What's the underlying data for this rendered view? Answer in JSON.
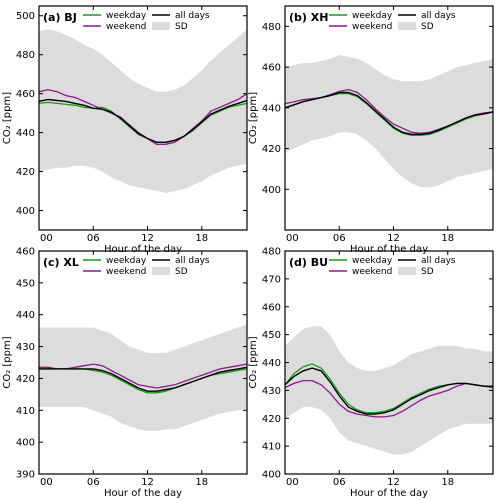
{
  "chart_data": [
    {
      "type": "line",
      "panel_label": "(a) BJ",
      "xlabel": "Hour of the day",
      "ylabel": "CO₂ [ppm]",
      "xlim": [
        0,
        23
      ],
      "ylim": [
        390,
        505
      ],
      "yticks": [
        400,
        420,
        440,
        460,
        480,
        500
      ],
      "xticks": [
        0,
        6,
        12,
        18
      ],
      "xtick_labels": [
        "00",
        "06",
        "12",
        "18"
      ],
      "x": [
        0,
        1,
        2,
        3,
        4,
        5,
        6,
        7,
        8,
        9,
        10,
        11,
        12,
        13,
        14,
        15,
        16,
        17,
        18,
        19,
        20,
        21,
        22,
        23
      ],
      "series": [
        {
          "name": "weekday",
          "color": "#1a9a1a",
          "values": [
            455,
            455.5,
            455,
            454.5,
            454,
            453,
            452.5,
            453,
            451,
            447,
            443,
            439,
            437,
            435,
            435,
            436,
            438,
            441,
            445,
            449,
            451,
            453,
            454,
            455
          ]
        },
        {
          "name": "weekend",
          "color": "#8b1a8b",
          "values": [
            461,
            462,
            461,
            459,
            458,
            456,
            454,
            452,
            450,
            448,
            444,
            440,
            437,
            434,
            434,
            435,
            438,
            442,
            446,
            451,
            453,
            455,
            457,
            460
          ]
        },
        {
          "name": "all days",
          "color": "#000000",
          "values": [
            456,
            457,
            456.5,
            456,
            455,
            454,
            452.5,
            452,
            450.5,
            447.5,
            443.5,
            439.5,
            437,
            435,
            435,
            436,
            438,
            441.5,
            445.5,
            449.5,
            451.5,
            453.5,
            455,
            456.5
          ]
        }
      ],
      "sd_upper": [
        492,
        493,
        492,
        490,
        488,
        485,
        483,
        480,
        476,
        472,
        468,
        465,
        463,
        461,
        461,
        462,
        464,
        468,
        472,
        477,
        481,
        485,
        489,
        493
      ],
      "sd_lower": [
        420,
        421,
        422,
        422,
        423,
        423,
        422,
        420,
        417,
        415,
        413,
        412,
        411,
        410,
        409,
        410,
        411,
        413,
        415,
        418,
        420,
        422,
        423,
        424
      ]
    },
    {
      "type": "line",
      "panel_label": "(b) XH",
      "xlabel": "Hour of the day",
      "ylabel": "CO₂ [ppm]",
      "xlim": [
        0,
        23
      ],
      "ylim": [
        380,
        490
      ],
      "yticks": [
        400,
        420,
        440,
        460,
        480
      ],
      "xticks": [
        0,
        6,
        12,
        18
      ],
      "xtick_labels": [
        "00",
        "06",
        "12",
        "18"
      ],
      "x": [
        0,
        1,
        2,
        3,
        4,
        5,
        6,
        7,
        8,
        9,
        10,
        11,
        12,
        13,
        14,
        15,
        16,
        17,
        18,
        19,
        20,
        21,
        22,
        23
      ],
      "series": [
        {
          "name": "weekday",
          "color": "#1a9a1a",
          "values": [
            440,
            441.5,
            443,
            444,
            445,
            446,
            447,
            447,
            445.5,
            442,
            438,
            434,
            430,
            427.5,
            426.5,
            426.5,
            427,
            428.5,
            430.5,
            432.5,
            434.5,
            436,
            437,
            438
          ]
        },
        {
          "name": "weekend",
          "color": "#8b1a8b",
          "values": [
            442,
            443,
            444,
            444.5,
            445,
            446.5,
            448,
            449,
            447.5,
            444,
            439.5,
            435.5,
            432,
            430,
            428,
            427.5,
            428,
            429.5,
            431,
            433,
            435,
            436.5,
            437.5,
            438
          ]
        },
        {
          "name": "all days",
          "color": "#000000",
          "values": [
            440,
            441.5,
            443,
            444,
            445,
            446,
            447.5,
            447.5,
            446,
            442.5,
            438.5,
            434.5,
            430.5,
            428,
            427,
            427,
            427.5,
            429,
            431,
            433,
            435,
            436.5,
            437,
            438
          ]
        }
      ],
      "sd_upper": [
        460,
        461,
        462,
        462,
        463,
        464,
        466,
        465,
        464,
        462,
        459,
        456,
        454,
        453,
        453,
        453,
        454,
        456,
        458,
        460,
        461,
        462,
        463,
        464
      ],
      "sd_lower": [
        418,
        420,
        422,
        424,
        425,
        426,
        428,
        428,
        427,
        424,
        420,
        415,
        410,
        406,
        403,
        401,
        401,
        402,
        404,
        406,
        407,
        408,
        409,
        410
      ]
    },
    {
      "type": "line",
      "panel_label": "(c) XL",
      "xlabel": "Hour of the day",
      "ylabel": "CO₂ [ppm]",
      "xlim": [
        0,
        23
      ],
      "ylim": [
        390,
        460
      ],
      "yticks": [
        390,
        400,
        410,
        420,
        430,
        440,
        450,
        460
      ],
      "xticks": [
        0,
        6,
        12,
        18
      ],
      "xtick_labels": [
        "00",
        "06",
        "12",
        "18"
      ],
      "x": [
        0,
        1,
        2,
        3,
        4,
        5,
        6,
        7,
        8,
        9,
        10,
        11,
        12,
        13,
        14,
        15,
        16,
        17,
        18,
        19,
        20,
        21,
        22,
        23
      ],
      "series": [
        {
          "name": "weekday",
          "color": "#1a9a1a",
          "values": [
            423,
            423,
            423,
            423,
            423,
            423,
            422.5,
            422,
            421,
            419.5,
            418,
            416.5,
            415.5,
            415.5,
            416,
            417,
            418,
            419,
            420,
            421,
            421.5,
            422,
            422.5,
            423
          ]
        },
        {
          "name": "weekend",
          "color": "#8b1a8b",
          "values": [
            423.5,
            423.5,
            423,
            423,
            423.5,
            424,
            424.5,
            424,
            422.5,
            421,
            419.5,
            418,
            417.5,
            417,
            417.5,
            418,
            419,
            420,
            421,
            422,
            423,
            423.5,
            424,
            424.5
          ]
        },
        {
          "name": "all days",
          "color": "#000000",
          "values": [
            423,
            423,
            423,
            423,
            423,
            423,
            423,
            422.5,
            421.5,
            420,
            418.5,
            417,
            416,
            416,
            416.5,
            417,
            418,
            419,
            420,
            421,
            422,
            422.5,
            423,
            423.5
          ]
        }
      ],
      "sd_upper": [
        436,
        436,
        436,
        436,
        436,
        436,
        436,
        435,
        434,
        432,
        430,
        429,
        428,
        428,
        428,
        429,
        430,
        431,
        432,
        433,
        434,
        435,
        436,
        437
      ],
      "sd_lower": [
        411,
        411,
        411,
        411,
        411,
        411,
        410,
        409,
        408,
        406,
        405,
        404,
        403.5,
        403.5,
        404,
        404,
        405,
        406,
        407,
        408,
        409,
        409.5,
        410,
        410.5
      ]
    },
    {
      "type": "line",
      "panel_label": "(d) BU",
      "xlabel": "Hour of the day",
      "ylabel": "CO₂ [ppm]",
      "xlim": [
        0,
        23
      ],
      "ylim": [
        400,
        480
      ],
      "yticks": [
        400,
        410,
        420,
        430,
        440,
        450,
        460,
        470,
        480
      ],
      "xticks": [
        0,
        6,
        12,
        18
      ],
      "xtick_labels": [
        "00",
        "06",
        "12",
        "18"
      ],
      "x": [
        0,
        1,
        2,
        3,
        4,
        5,
        6,
        7,
        8,
        9,
        10,
        11,
        12,
        13,
        14,
        15,
        16,
        17,
        18,
        19,
        20,
        21,
        22,
        23
      ],
      "series": [
        {
          "name": "weekday",
          "color": "#1a9a1a",
          "values": [
            432,
            436,
            438.5,
            439.5,
            438,
            434,
            429,
            425,
            423,
            422,
            422,
            422.5,
            423.5,
            425.5,
            427.5,
            429,
            430.5,
            431.5,
            432,
            432.5,
            432.5,
            432,
            431.5,
            431.5
          ]
        },
        {
          "name": "weekend",
          "color": "#8b1a8b",
          "values": [
            431,
            432.5,
            433.5,
            433.5,
            432,
            429,
            425,
            422.5,
            421.5,
            421,
            420.5,
            420.5,
            421,
            422.5,
            424.5,
            426.5,
            428,
            429,
            430,
            431.5,
            432.5,
            432,
            431.5,
            431
          ]
        },
        {
          "name": "all days",
          "color": "#000000",
          "values": [
            432,
            435,
            437,
            438,
            437,
            433,
            428,
            424,
            422.5,
            421.5,
            421.5,
            422,
            423,
            425,
            427,
            428.5,
            430,
            431,
            432,
            432.5,
            432.5,
            432,
            431.5,
            431.5
          ]
        }
      ],
      "sd_upper": [
        446,
        449,
        452,
        453,
        453,
        450,
        444,
        440,
        438,
        437,
        437,
        438,
        439,
        441,
        443,
        444,
        445,
        446,
        446,
        446,
        445,
        445,
        444,
        444
      ],
      "sd_lower": [
        420,
        422,
        424,
        424,
        423,
        420,
        415,
        412,
        411,
        410,
        409,
        408,
        407,
        407,
        408,
        410,
        412,
        414,
        416,
        417,
        418,
        418,
        418,
        418
      ]
    }
  ],
  "legend": {
    "weekday": "weekday",
    "weekend": "weekend",
    "all_days": "all days",
    "sd": "SD",
    "sd_color": "#dcdcdc"
  }
}
